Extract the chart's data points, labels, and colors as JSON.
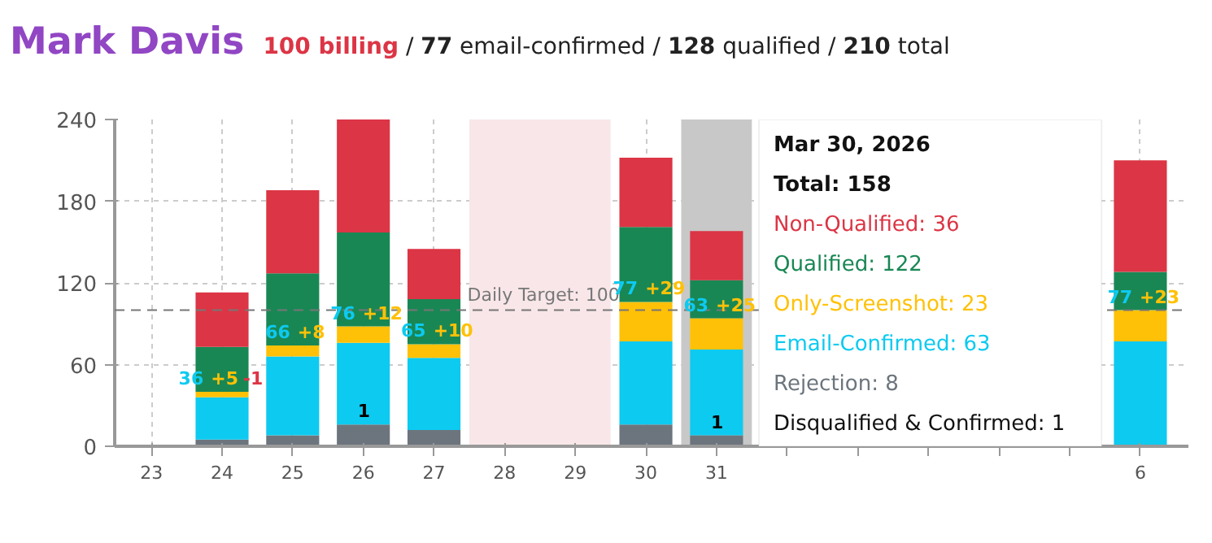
{
  "chart_data": {
    "type": "bar",
    "title": "Mark Davis",
    "subtitle": "100 billing / 77 email-confirmed / 128 qualified / 210 total",
    "categories": [
      "23",
      "24",
      "25",
      "26",
      "27",
      "28",
      "29",
      "30",
      "31",
      null,
      null,
      null,
      null,
      null,
      "6"
    ],
    "stacked": true,
    "series": [
      {
        "color": "#6c757d",
        "values": [
          null,
          5,
          8,
          16,
          12,
          null,
          null,
          16,
          8,
          null,
          null,
          null,
          null,
          null,
          null
        ]
      },
      {
        "color": "#0dcaf0",
        "values": [
          null,
          31,
          58,
          60,
          53,
          null,
          null,
          61,
          63,
          null,
          null,
          null,
          null,
          null,
          77
        ]
      },
      {
        "color": "#ffc107",
        "values": [
          null,
          4,
          8,
          12,
          10,
          null,
          null,
          29,
          23,
          null,
          null,
          null,
          null,
          null,
          23
        ]
      },
      {
        "color": "#198754",
        "values": [
          null,
          33,
          53,
          69,
          33,
          null,
          null,
          55,
          28,
          null,
          null,
          null,
          null,
          null,
          28
        ]
      },
      {
        "color": "#dc3545",
        "values": [
          null,
          40,
          61,
          83,
          37,
          null,
          null,
          51,
          36,
          null,
          null,
          null,
          null,
          null,
          82
        ]
      }
    ],
    "ylim": [
      0,
      240
    ],
    "yticks": [
      0,
      60,
      120,
      180,
      240
    ],
    "grid": true,
    "ref_lines": [
      {
        "axis": "y",
        "value": 100,
        "label": "Daily Target: 100",
        "color": "#777777",
        "line_style": "dashed"
      }
    ],
    "bands": [
      {
        "axis": "x",
        "from": "28",
        "to": "29",
        "color": "#f8e6e8"
      },
      {
        "axis": "x",
        "from": "31",
        "to": "31",
        "color": "#c8c8c8"
      }
    ],
    "annotations": [
      {
        "text": "36 +5 -1",
        "x": "24",
        "y": 40
      },
      {
        "text": "66 +8",
        "x": "25",
        "y": 74
      },
      {
        "text": "76 +12",
        "x": "26",
        "y": 88
      },
      {
        "text": "65 +10",
        "x": "27",
        "y": 75
      },
      {
        "text": "77 +29",
        "x": "30",
        "y": 106
      },
      {
        "text": "63 +25",
        "x": "31",
        "y": 94
      },
      {
        "text": "77 +23",
        "x": "6",
        "y": 100
      },
      {
        "text": "1",
        "x": "26",
        "y": 16
      },
      {
        "text": "1",
        "x": "31",
        "y": 8
      },
      "Mar 30, 2026",
      "Total: 158",
      "Non-Qualified: 36",
      "Qualified: 122",
      "Only-Screenshot: 23",
      "Email-Confirmed: 63",
      "Rejection: 8",
      "Disqualified & Confirmed: 1"
    ]
  }
}
